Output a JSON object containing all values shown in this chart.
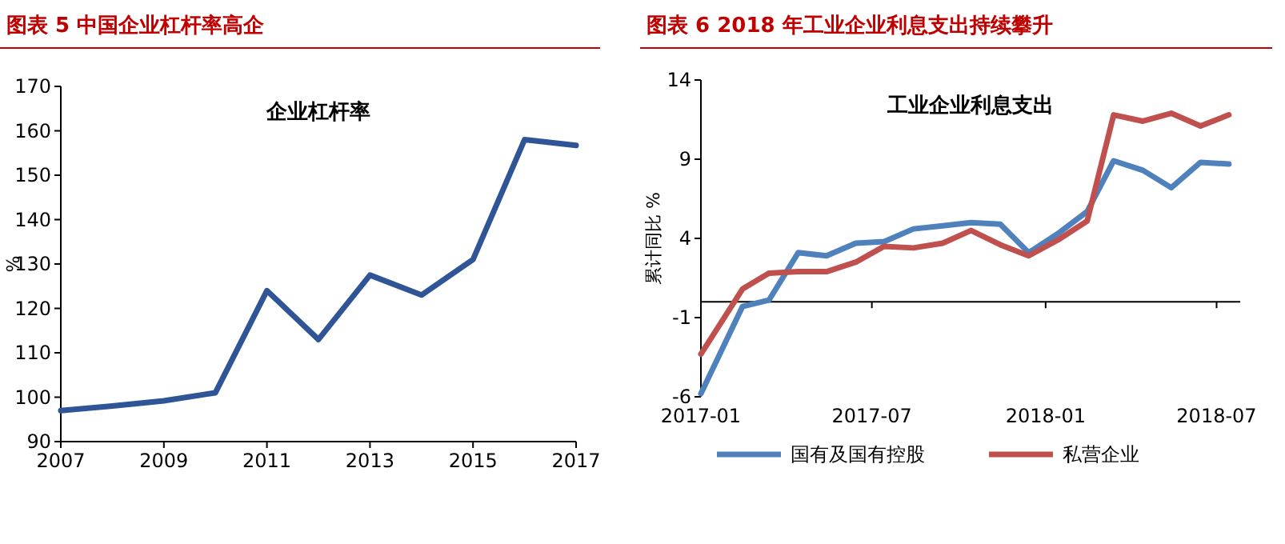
{
  "chart_data": [
    {
      "type": "line",
      "title": "图表 5 中国企业杠杆率高企",
      "subtitle": "企业杠杆率",
      "ylabel": "%",
      "x": [
        2007,
        2008,
        2009,
        2010,
        2011,
        2012,
        2013,
        2014,
        2015,
        2016,
        2017
      ],
      "series": [
        {
          "color": "#2f5597",
          "values": [
            97,
            98,
            99.2,
            101,
            124,
            113,
            127.5,
            123,
            131,
            158,
            156.7
          ]
        }
      ],
      "xlim": [
        2007,
        2017
      ],
      "xticks": [
        2007,
        2009,
        2011,
        2013,
        2015,
        2017
      ],
      "ylim": [
        90,
        170
      ],
      "yticks": [
        90,
        100,
        110,
        120,
        130,
        140,
        150,
        160,
        170
      ],
      "grid": false,
      "legend": false
    },
    {
      "type": "line",
      "title": "图表 6 2018 年工业企业利息支出持续攀升",
      "subtitle": "工业企业利息支出",
      "ylabel": "累计同比 %",
      "x": [
        "2017-01-01",
        "2017-02-14",
        "2017-03-14",
        "2017-04-14",
        "2017-05-14",
        "2017-06-14",
        "2017-07-14",
        "2017-08-14",
        "2017-09-14",
        "2017-10-14",
        "2017-11-14",
        "2017-12-14",
        "2018-01-14",
        "2018-02-14",
        "2018-03-14",
        "2018-04-14",
        "2018-05-14",
        "2018-06-14",
        "2018-07-14"
      ],
      "series": [
        {
          "name": "国有及国有控股",
          "color": "#4f81bd",
          "values": [
            -5.8,
            -0.3,
            0.1,
            3.1,
            2.9,
            3.7,
            3.8,
            4.6,
            4.8,
            5.0,
            4.9,
            3.1,
            4.3,
            5.7,
            8.9,
            8.3,
            7.2,
            8.8,
            8.7
          ]
        },
        {
          "name": "私营企业",
          "color": "#c0504d",
          "values": [
            -3.3,
            0.8,
            1.8,
            1.9,
            1.9,
            2.5,
            3.5,
            3.4,
            3.7,
            4.5,
            3.6,
            2.9,
            3.9,
            5.1,
            11.8,
            11.4,
            11.9,
            11.1,
            11.8
          ]
        }
      ],
      "xlim": [
        "2017-01-01",
        "2018-07-26"
      ],
      "xticks": [
        {
          "value": "2017-01-01",
          "label": "2017-01"
        },
        {
          "value": "2017-07-01",
          "label": "2017-07"
        },
        {
          "value": "2018-01-01",
          "label": "2018-01"
        },
        {
          "value": "2018-07-01",
          "label": "2018-07"
        }
      ],
      "ylim": [
        -6,
        14
      ],
      "yticks": [
        -6,
        -1,
        4,
        9,
        14
      ],
      "grid": false,
      "legend": "bottom"
    }
  ]
}
